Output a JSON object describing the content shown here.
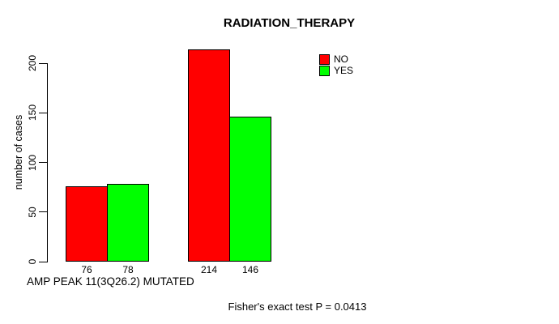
{
  "chart_data": {
    "type": "bar",
    "title": "RADIATION_THERAPY",
    "ylabel": "number of cases",
    "xlabel": "AMP PEAK 11(3Q26.2) MUTATED",
    "annotation": "Fisher's exact test P = 0.0413",
    "categories": [
      "",
      ""
    ],
    "series": [
      {
        "name": "NO",
        "color": "#ff0000",
        "values": [
          76,
          214
        ]
      },
      {
        "name": "YES",
        "color": "#00ff00",
        "values": [
          78,
          146
        ]
      }
    ],
    "yticks": [
      0,
      50,
      100,
      150,
      200
    ],
    "ylim": [
      0,
      200
    ],
    "grid": false,
    "show_value_labels": true,
    "legend_position": "top-right",
    "bar_border_color": "#000000",
    "background_color": "#ffffff"
  }
}
